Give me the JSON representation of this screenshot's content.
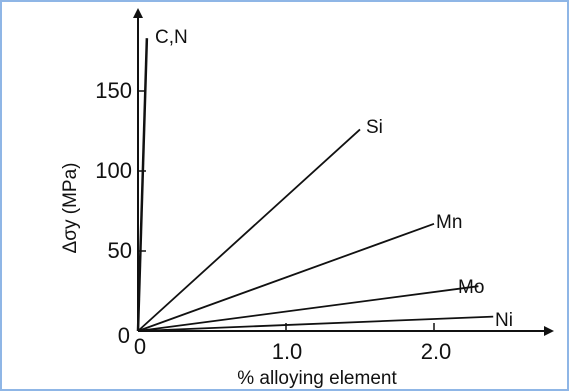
{
  "chart_data": {
    "type": "line",
    "xlabel": "% alloying element",
    "ylabel": "Δσy (MPa)",
    "xlim": [
      0,
      2.6
    ],
    "ylim": [
      0,
      190
    ],
    "x_ticks": [
      "0",
      "1.0",
      "2.0"
    ],
    "y_ticks": [
      "0",
      "50",
      "100",
      "150"
    ],
    "series": [
      {
        "name": "C,N",
        "x": [
          0,
          0.06
        ],
        "y": [
          0,
          183
        ]
      },
      {
        "name": "Si",
        "x": [
          0,
          1.5
        ],
        "y": [
          0,
          126
        ]
      },
      {
        "name": "Mn",
        "x": [
          0,
          2.0
        ],
        "y": [
          0,
          67
        ]
      },
      {
        "name": "Mo",
        "x": [
          0,
          2.3
        ],
        "y": [
          0,
          28
        ]
      },
      {
        "name": "Ni",
        "x": [
          0,
          2.4
        ],
        "y": [
          0,
          9
        ]
      }
    ],
    "colors": {
      "line": "#111111",
      "frame": "#8fb6e6"
    }
  }
}
